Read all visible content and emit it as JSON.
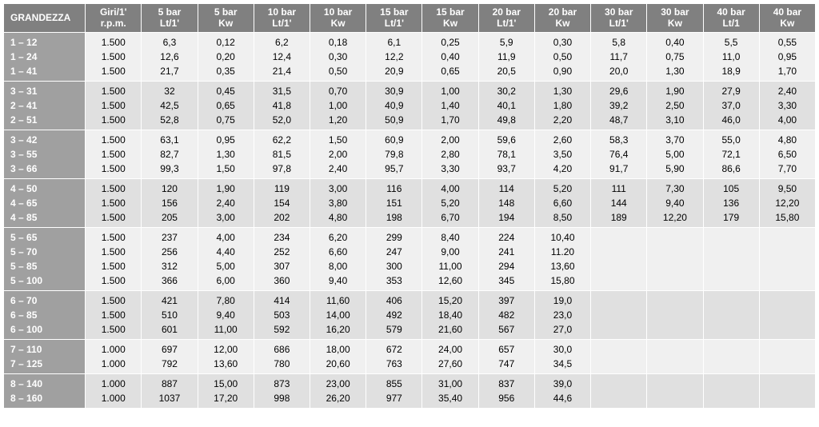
{
  "table": {
    "colors": {
      "header_bg": "#808080",
      "header_fg": "#ffffff",
      "label_bg": "#a0a0a0",
      "label_fg": "#ffffff",
      "row_odd_bg": "#f0f0f0",
      "row_even_bg": "#e0e0e0",
      "border": "#ffffff"
    },
    "font": {
      "family": "Arial",
      "size_pt": 11,
      "header_weight": "bold"
    },
    "headers": [
      "GRANDEZZA",
      "Giri/1'\nr.p.m.",
      "5 bar\nLt/1'",
      "5 bar\nKw",
      "10 bar\nLt/1'",
      "10 bar\nKw",
      "15 bar\nLt/1'",
      "15 bar\nKw",
      "20 bar\nLt/1'",
      "20 bar\nKw",
      "30 bar\nLt/1'",
      "30 bar\nKw",
      "40 bar\nLt/1",
      "40 bar\nKw"
    ],
    "groups": [
      {
        "shade": "odd",
        "rows": [
          {
            "label": "1 – 12",
            "cells": [
              "1.500",
              "6,3",
              "0,12",
              "6,2",
              "0,18",
              "6,1",
              "0,25",
              "5,9",
              "0,30",
              "5,8",
              "0,40",
              "5,5",
              "0,55"
            ]
          },
          {
            "label": "1 – 24",
            "cells": [
              "1.500",
              "12,6",
              "0,20",
              "12,4",
              "0,30",
              "12,2",
              "0,40",
              "11,9",
              "0,50",
              "11,7",
              "0,75",
              "11,0",
              "0,95"
            ]
          },
          {
            "label": "1 – 41",
            "cells": [
              "1.500",
              "21,7",
              "0,35",
              "21,4",
              "0,50",
              "20,9",
              "0,65",
              "20,5",
              "0,90",
              "20,0",
              "1,30",
              "18,9",
              "1,70"
            ]
          }
        ]
      },
      {
        "shade": "even",
        "rows": [
          {
            "label": "3 – 31",
            "cells": [
              "1.500",
              "32",
              "0,45",
              "31,5",
              "0,70",
              "30,9",
              "1,00",
              "30,2",
              "1,30",
              "29,6",
              "1,90",
              "27,9",
              "2,40"
            ]
          },
          {
            "label": "2 – 41",
            "cells": [
              "1.500",
              "42,5",
              "0,65",
              "41,8",
              "1,00",
              "40,9",
              "1,40",
              "40,1",
              "1,80",
              "39,2",
              "2,50",
              "37,0",
              "3,30"
            ]
          },
          {
            "label": "2 – 51",
            "cells": [
              "1.500",
              "52,8",
              "0,75",
              "52,0",
              "1,20",
              "50,9",
              "1,70",
              "49,8",
              "2,20",
              "48,7",
              "3,10",
              "46,0",
              "4,00"
            ]
          }
        ]
      },
      {
        "shade": "odd",
        "rows": [
          {
            "label": "3 – 42",
            "cells": [
              "1.500",
              "63,1",
              "0,95",
              "62,2",
              "1,50",
              "60,9",
              "2,00",
              "59,6",
              "2,60",
              "58,3",
              "3,70",
              "55,0",
              "4,80"
            ]
          },
          {
            "label": "3 – 55",
            "cells": [
              "1.500",
              "82,7",
              "1,30",
              "81,5",
              "2,00",
              "79,8",
              "2,80",
              "78,1",
              "3,50",
              "76,4",
              "5,00",
              "72,1",
              "6,50"
            ]
          },
          {
            "label": "3 – 66",
            "cells": [
              "1.500",
              "99,3",
              "1,50",
              "97,8",
              "2,40",
              "95,7",
              "3,30",
              "93,7",
              "4,20",
              "91,7",
              "5,90",
              "86,6",
              "7,70"
            ]
          }
        ]
      },
      {
        "shade": "even",
        "rows": [
          {
            "label": "4 – 50",
            "cells": [
              "1.500",
              "120",
              "1,90",
              "119",
              "3,00",
              "116",
              "4,00",
              "114",
              "5,20",
              "111",
              "7,30",
              "105",
              "9,50"
            ]
          },
          {
            "label": "4 – 65",
            "cells": [
              "1.500",
              "156",
              "2,40",
              "154",
              "3,80",
              "151",
              "5,20",
              "148",
              "6,60",
              "144",
              "9,40",
              "136",
              "12,20"
            ]
          },
          {
            "label": "4 – 85",
            "cells": [
              "1.500",
              "205",
              "3,00",
              "202",
              "4,80",
              "198",
              "6,70",
              "194",
              "8,50",
              "189",
              "12,20",
              "179",
              "15,80"
            ]
          }
        ]
      },
      {
        "shade": "odd",
        "rows": [
          {
            "label": "5 – 65",
            "cells": [
              "1.500",
              "237",
              "4,00",
              "234",
              "6,20",
              "299",
              "8,40",
              "224",
              "10,40",
              "",
              "",
              "",
              ""
            ]
          },
          {
            "label": "5 – 70",
            "cells": [
              "1.500",
              "256",
              "4,40",
              "252",
              "6,60",
              "247",
              "9,00",
              "241",
              "11.20",
              "",
              "",
              "",
              ""
            ]
          },
          {
            "label": "5 – 85",
            "cells": [
              "1.500",
              "312",
              "5,00",
              "307",
              "8,00",
              "300",
              "11,00",
              "294",
              "13,60",
              "",
              "",
              "",
              ""
            ]
          },
          {
            "label": "5 – 100",
            "cells": [
              "1.500",
              "366",
              "6,00",
              "360",
              "9,40",
              "353",
              "12,60",
              "345",
              "15,80",
              "",
              "",
              "",
              ""
            ]
          }
        ]
      },
      {
        "shade": "even",
        "rows": [
          {
            "label": "6 – 70",
            "cells": [
              "1.500",
              "421",
              "7,80",
              "414",
              "11,60",
              "406",
              "15,20",
              "397",
              "19,0",
              "",
              "",
              "",
              ""
            ]
          },
          {
            "label": "6 – 85",
            "cells": [
              "1.500",
              "510",
              "9,40",
              "503",
              "14,00",
              "492",
              "18,40",
              "482",
              "23,0",
              "",
              "",
              "",
              ""
            ]
          },
          {
            "label": "6 – 100",
            "cells": [
              "1.500",
              "601",
              "11,00",
              "592",
              "16,20",
              "579",
              "21,60",
              "567",
              "27,0",
              "",
              "",
              "",
              ""
            ]
          }
        ]
      },
      {
        "shade": "odd",
        "rows": [
          {
            "label": "7 – 110",
            "cells": [
              "1.000",
              "697",
              "12,00",
              "686",
              "18,00",
              "672",
              "24,00",
              "657",
              "30,0",
              "",
              "",
              "",
              ""
            ]
          },
          {
            "label": "7 – 125",
            "cells": [
              "1.000",
              "792",
              "13,60",
              "780",
              "20,60",
              "763",
              "27,60",
              "747",
              "34,5",
              "",
              "",
              "",
              ""
            ]
          }
        ]
      },
      {
        "shade": "even",
        "rows": [
          {
            "label": "8 – 140",
            "cells": [
              "1.000",
              "887",
              "15,00",
              "873",
              "23,00",
              "855",
              "31,00",
              "837",
              "39,0",
              "",
              "",
              "",
              ""
            ]
          },
          {
            "label": "8 – 160",
            "cells": [
              "1.000",
              "1037",
              "17,20",
              "998",
              "26,20",
              "977",
              "35,40",
              "956",
              "44,6",
              "",
              "",
              "",
              ""
            ]
          }
        ]
      }
    ]
  }
}
